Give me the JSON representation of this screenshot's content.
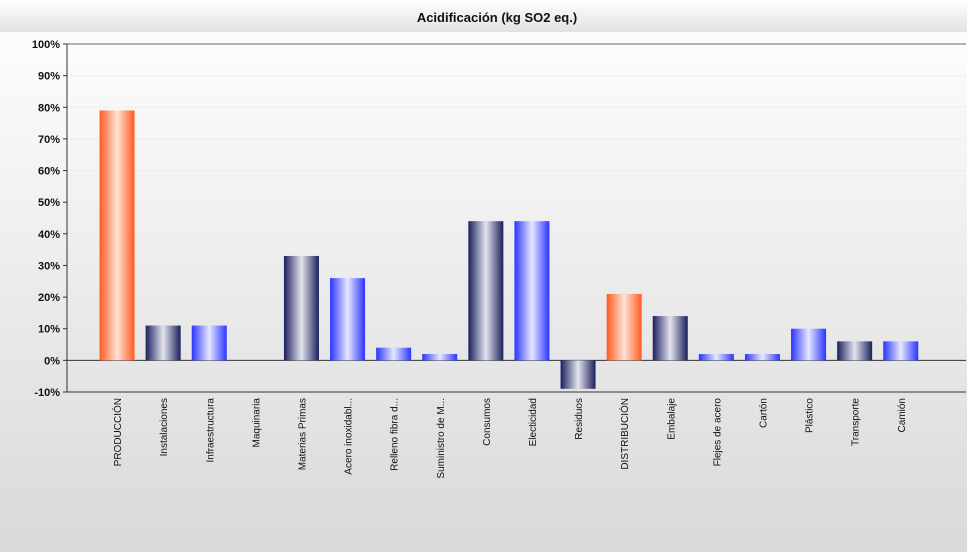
{
  "chart_data": {
    "type": "bar",
    "title": "Acidificación (kg SO2 eq.)",
    "xlabel": "",
    "ylabel": "",
    "ylim": [
      -10,
      100
    ],
    "yticks": [
      "-10%",
      "0%",
      "10%",
      "20%",
      "30%",
      "40%",
      "50%",
      "60%",
      "70%",
      "80%",
      "90%",
      "100%"
    ],
    "categories": [
      "PRODUCCIÓN",
      "Instalaciones",
      "Infraestructura",
      "Maquinaria",
      "Materias Primas",
      "Acero inoxidabl...",
      "Relleno fibra d...",
      "Suministro de M...",
      "Consumos",
      "Electicidad",
      "Residuos",
      "DISTRIBUCIÓN",
      "Embalaje",
      "Flejes de acero",
      "Cartón",
      "Plástico",
      "Transporte",
      "Camión"
    ],
    "values": [
      79,
      11,
      11,
      0,
      33,
      26,
      4,
      2,
      44,
      44,
      -9,
      21,
      14,
      2,
      2,
      10,
      6,
      6
    ],
    "bar_styles": [
      "orange",
      "navy",
      "blue",
      "navy",
      "navy",
      "blue",
      "blue",
      "blue",
      "navy",
      "blue",
      "navy",
      "orange",
      "navy",
      "blue",
      "blue",
      "blue",
      "navy",
      "blue"
    ],
    "grid": true,
    "colors": {
      "orange": "#ff6a2e",
      "navy": "#2a2f7a",
      "blue": "#2f3cff"
    }
  }
}
